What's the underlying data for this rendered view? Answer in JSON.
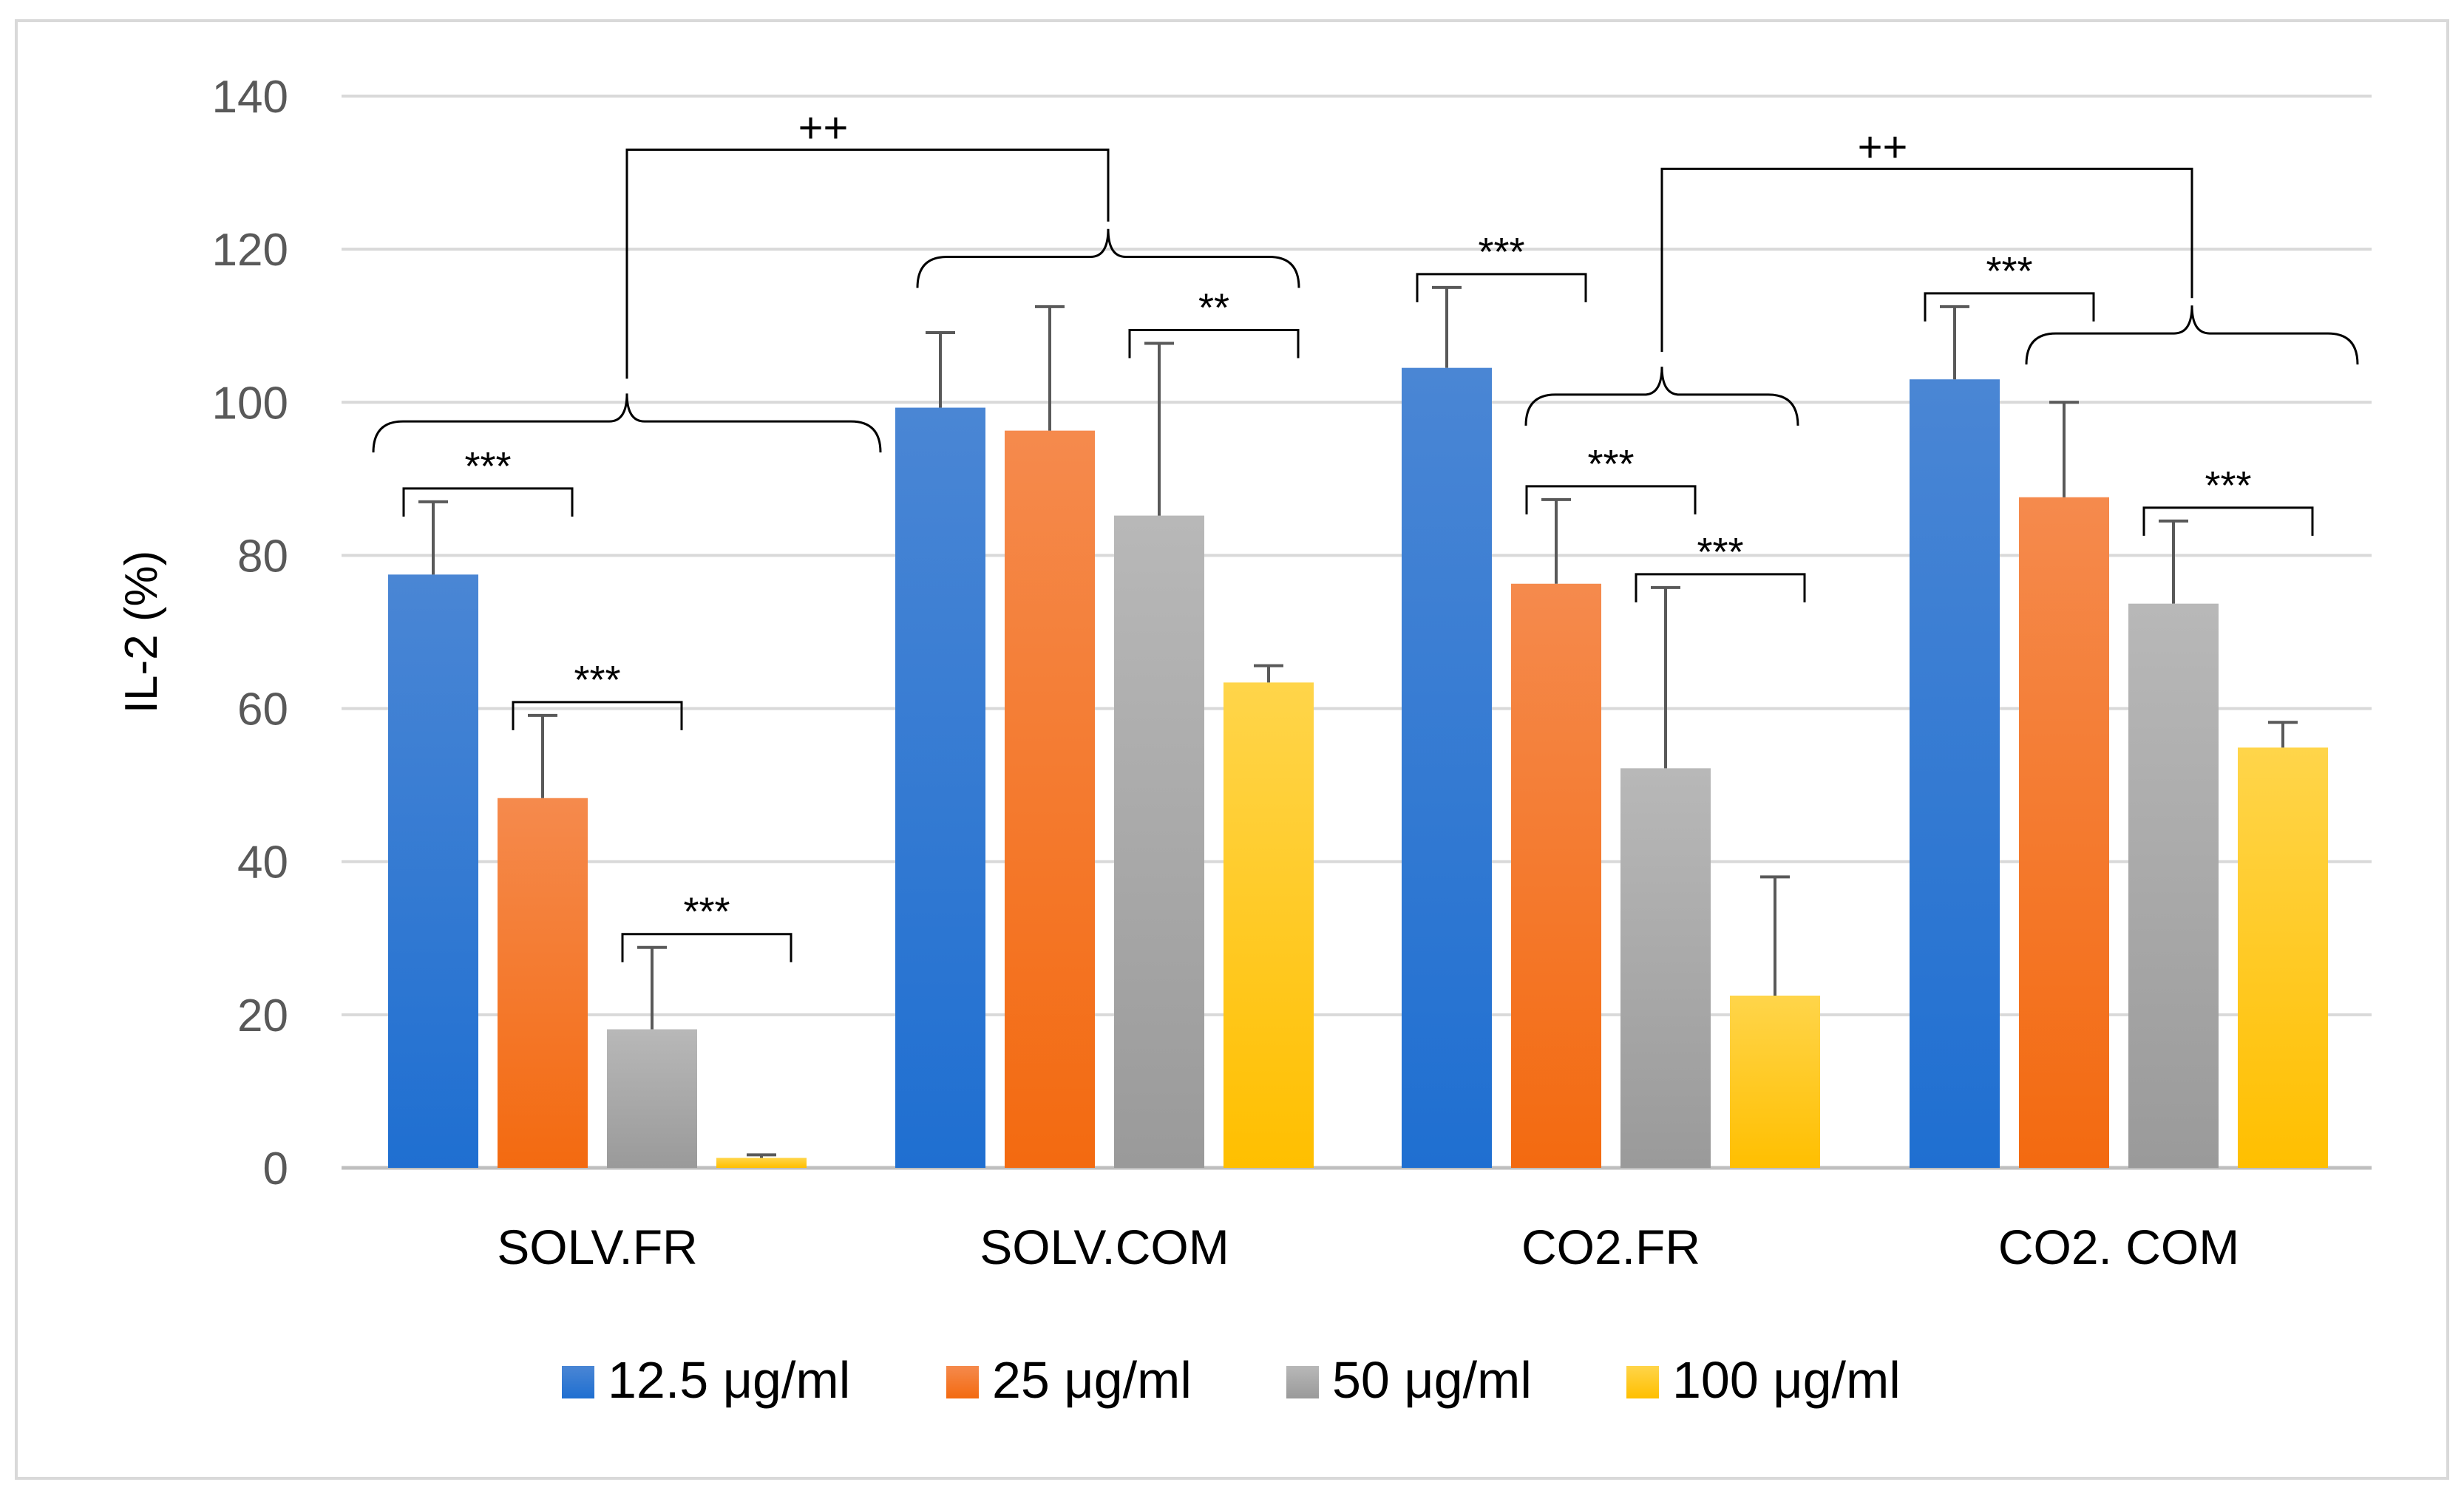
{
  "chart_data": {
    "type": "bar",
    "title": "",
    "xlabel": "",
    "ylabel": "IL-2 (%)",
    "ylim": [
      0,
      140
    ],
    "yticks": [
      0,
      20,
      40,
      60,
      80,
      100,
      120,
      140
    ],
    "grid": true,
    "legend_position": "bottom",
    "categories": [
      "SOLV.FR",
      "SOLV.COM",
      "CO2.FR",
      "CO2. COM"
    ],
    "series": [
      {
        "name": "12.5 μg/ml",
        "color": "#1f6fd1",
        "color_light": "#4a86d4",
        "values": [
          77.5,
          99.3,
          104.5,
          103.0
        ],
        "errors": [
          9.5,
          9.8,
          10.5,
          9.5
        ]
      },
      {
        "name": "25 μg/ml",
        "color": "#f36a10",
        "color_light": "#f58a4d",
        "values": [
          48.3,
          96.3,
          76.3,
          87.6
        ],
        "errors": [
          10.8,
          16.2,
          11.0,
          12.4
        ]
      },
      {
        "name": "50 μg/ml",
        "color": "#9a9a9a",
        "color_light": "#b8b8b8",
        "values": [
          18.1,
          85.2,
          52.2,
          73.7
        ],
        "errors": [
          10.7,
          22.5,
          23.6,
          10.8
        ]
      },
      {
        "name": "100 μg/ml",
        "color": "#ffbf00",
        "color_light": "#ffd54a",
        "values": [
          1.3,
          63.4,
          22.5,
          54.9
        ],
        "errors": [
          0.4,
          2.2,
          15.5,
          3.3
        ]
      }
    ],
    "pair_brackets": [
      {
        "category": 0,
        "from_series": 0,
        "to_series": 1,
        "label": "***"
      },
      {
        "category": 0,
        "from_series": 1,
        "to_series": 2,
        "label": "***"
      },
      {
        "category": 0,
        "from_series": 2,
        "to_series": 3,
        "label": "***"
      },
      {
        "category": 1,
        "from_series": 2,
        "to_series": 3,
        "label": "**"
      },
      {
        "category": 2,
        "from_series": 0,
        "to_series": 1,
        "label": "***"
      },
      {
        "category": 2,
        "from_series": 1,
        "to_series": 2,
        "label": "***"
      },
      {
        "category": 2,
        "from_series": 2,
        "to_series": 3,
        "label": "***"
      },
      {
        "category": 3,
        "from_series": 0,
        "to_series": 1,
        "label": "***"
      },
      {
        "category": 3,
        "from_series": 2,
        "to_series": 3,
        "label": "***"
      }
    ],
    "group_comparisons": [
      {
        "from_category": 0,
        "to_category": 1,
        "label": "++"
      },
      {
        "from_category": 2,
        "to_category": 3,
        "label": "++"
      }
    ]
  }
}
